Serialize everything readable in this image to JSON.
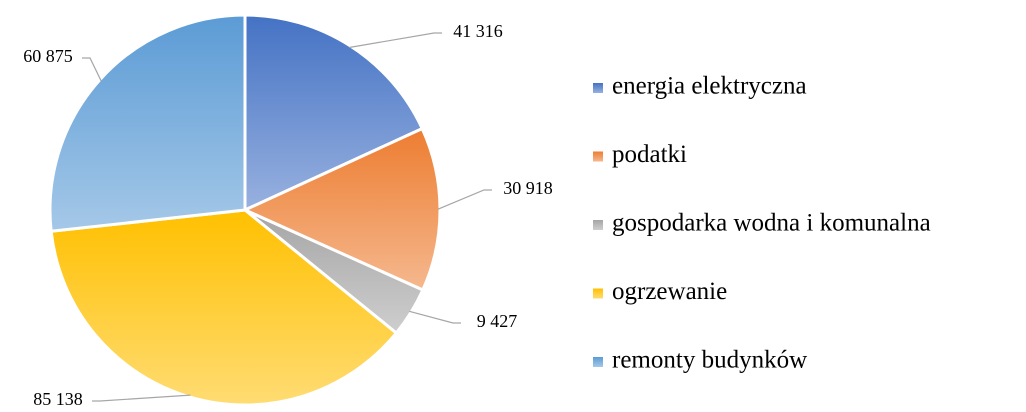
{
  "chart_data": {
    "type": "pie",
    "categories": [
      "energia elektryczna",
      "podatki",
      "gospodarka wodna i komunalna",
      "ogrzewanie",
      "remonty budynków"
    ],
    "values": [
      41316,
      30918,
      9427,
      85138,
      60875
    ],
    "value_labels": [
      "41 316",
      "30 918",
      "9 427",
      "85 138",
      "60 875"
    ],
    "colors": [
      "#4472c4",
      "#ed7d31",
      "#a5a5a5",
      "#ffc000",
      "#5b9bd5"
    ],
    "legend": "right"
  }
}
